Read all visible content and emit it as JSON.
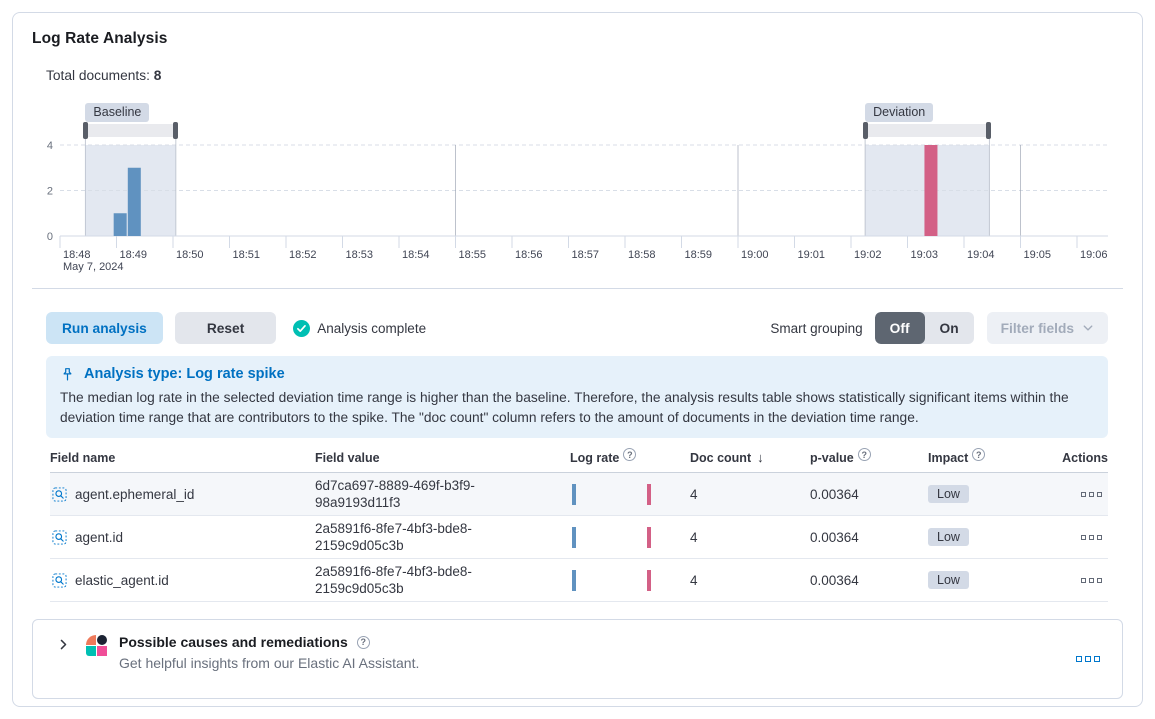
{
  "page": {
    "title": "Log Rate Analysis"
  },
  "summary": {
    "label": "Total documents:",
    "value": "8"
  },
  "chart_data": {
    "type": "bar",
    "title": "Document count histogram with baseline and deviation time range selections",
    "y_axis": {
      "ticks": [
        0,
        2,
        4
      ],
      "max": 4
    },
    "x_axis": {
      "tick_labels": [
        "18:48",
        "18:49",
        "18:50",
        "18:51",
        "18:52",
        "18:53",
        "18:54",
        "18:55",
        "18:56",
        "18:57",
        "18:58",
        "18:59",
        "19:00",
        "19:01",
        "19:02",
        "19:03",
        "19:04",
        "19:05",
        "19:06"
      ],
      "start_date_label": "May 7, 2024",
      "major_gridline_minutes": [
        7,
        12,
        17
      ]
    },
    "bars": [
      {
        "series": "baseline",
        "minute": 0.95,
        "value": 1
      },
      {
        "series": "baseline",
        "minute": 1.2,
        "value": 3
      },
      {
        "series": "deviation",
        "minute": 15.3,
        "value": 4
      }
    ],
    "series_colors": {
      "baseline": "#6092C0",
      "deviation": "#D36086"
    },
    "windows": [
      {
        "name": "baseline",
        "label": "Baseline",
        "from_minute": 0.45,
        "to_minute": 2.05
      },
      {
        "name": "deviation",
        "label": "Deviation",
        "from_minute": 14.25,
        "to_minute": 16.45
      }
    ]
  },
  "toolbar": {
    "run_button": "Run analysis",
    "reset_button": "Reset",
    "status": "Analysis complete",
    "smart_grouping_label": "Smart grouping",
    "toggle_off": "Off",
    "toggle_on": "On",
    "filter_fields_button": "Filter fields"
  },
  "callout": {
    "title": "Analysis type: Log rate spike",
    "body": "The median log rate in the selected deviation time range is higher than the baseline. Therefore, the analysis results table shows statistically significant items within the deviation time range that are contributors to the spike. The \"doc count\" column refers to the amount of documents in the deviation time range."
  },
  "table": {
    "columns": [
      {
        "label": "Field name"
      },
      {
        "label": "Field value"
      },
      {
        "label": "Log rate",
        "info": true
      },
      {
        "label": "Doc count",
        "sorted": "desc"
      },
      {
        "label": "p-value",
        "info": true
      },
      {
        "label": "Impact",
        "info": true
      },
      {
        "label": "Actions",
        "align": "right"
      }
    ],
    "rows": [
      {
        "field_name": "agent.ephemeral_id",
        "field_value": "6d7ca697-8889-469f-b3f9-98a9193d11f3",
        "doc_count": "4",
        "p_value": "0.00364",
        "impact": "Low"
      },
      {
        "field_name": "agent.id",
        "field_value": "2a5891f6-8fe7-4bf3-bde8-2159c9d05c3b",
        "doc_count": "4",
        "p_value": "0.00364",
        "impact": "Low"
      },
      {
        "field_name": "elastic_agent.id",
        "field_value": "2a5891f6-8fe7-4bf3-bde8-2159c9d05c3b",
        "doc_count": "4",
        "p_value": "0.00364",
        "impact": "Low"
      }
    ]
  },
  "ai_panel": {
    "title": "Possible causes and remediations",
    "subtitle": "Get helpful insights from our Elastic AI Assistant."
  },
  "colors": {
    "primary": "#0077CC",
    "success": "#00BFB3",
    "baseline_bar": "#6092C0",
    "deviation_bar": "#D36086",
    "window_shade": "#E3E8F1"
  }
}
